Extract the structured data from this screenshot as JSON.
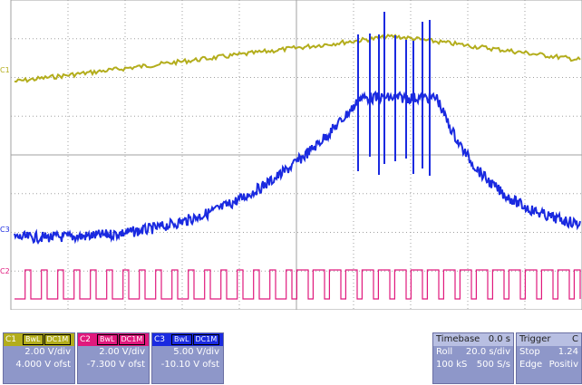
{
  "channels": {
    "c1": {
      "name": "C1",
      "bw": "BwL",
      "coupling": "DC1M",
      "vdiv": "2.00 V/div",
      "offset": "4.000 V ofst",
      "color": "#b3ad1c"
    },
    "c2": {
      "name": "C2",
      "bw": "BwL",
      "coupling": "DC1M",
      "vdiv": "2.00 V/div",
      "offset": "-7.300 V ofst",
      "color": "#e0197d"
    },
    "c3": {
      "name": "C3",
      "bw": "BwL",
      "coupling": "DC1M",
      "vdiv": "5.00 V/div",
      "offset": "-10.10 V ofst",
      "color": "#1a2ae0"
    }
  },
  "timebase": {
    "label": "Timebase",
    "delay": "0.0 s",
    "mode": "Roll",
    "tdiv": "20.0 s/div",
    "samples": "100 kS",
    "rate": "500 S/s"
  },
  "trigger": {
    "label": "Trigger",
    "channel": "C",
    "mode": "Stop",
    "level": "1.24",
    "type": "Edge",
    "slope": "Positiv"
  },
  "colors": {
    "grid": "#a0a0a0",
    "trigger_marker": "#e0197d",
    "panel": "#8e97c9"
  }
}
